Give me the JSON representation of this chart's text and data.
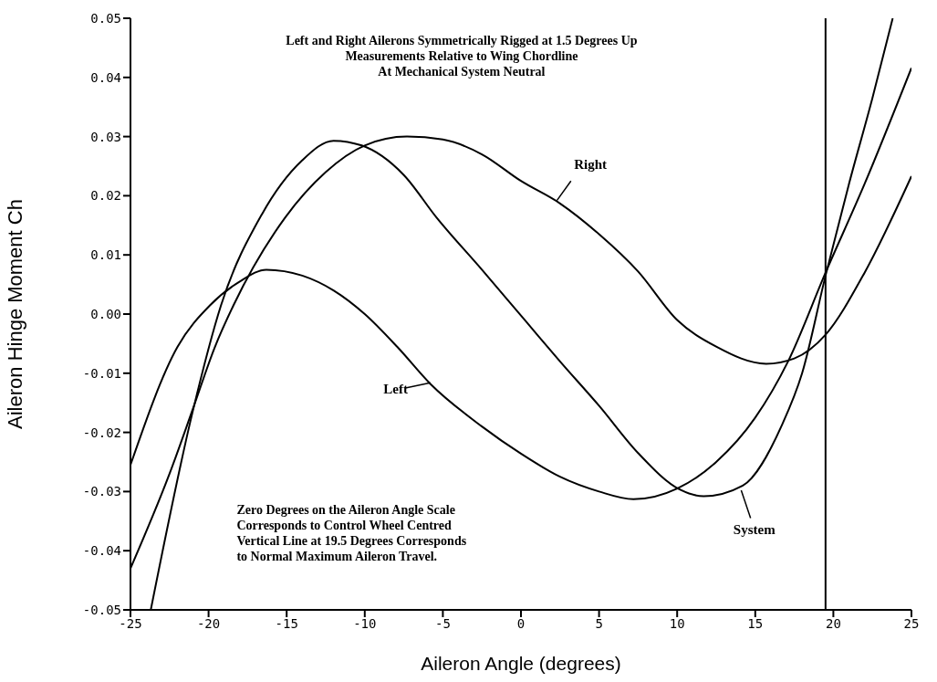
{
  "chart_data": {
    "type": "line",
    "xlabel": "Aileron Angle (degrees)",
    "ylabel": "Aileron Hinge Moment Ch",
    "xlim": [
      -25,
      25
    ],
    "xticks": [
      -25,
      -20,
      -15,
      -10,
      -5,
      0,
      5,
      10,
      15,
      20,
      25
    ],
    "ylim": [
      -0.05,
      0.05
    ],
    "yticks": [
      -0.05,
      -0.04,
      -0.03,
      -0.02,
      -0.01,
      {
        "value": 0,
        "label": "0.00"
      },
      0.01,
      0.02,
      0.03,
      0.04,
      0.05
    ],
    "grid": false,
    "marker": "none",
    "line_style": "solid",
    "series": [
      {
        "name": "Right",
        "color": "#000000",
        "x": [
          -25,
          -22.5,
          -21,
          -19.6,
          -18.4,
          -15.1,
          -12.5,
          -10,
          -7.3,
          -5,
          -2.5,
          0,
          2.5,
          5,
          7.5,
          10,
          12.5,
          15.7,
          17.5,
          19.5,
          22,
          25
        ],
        "values": [
          -0.043,
          -0.027,
          -0.016,
          -0.0056,
          0.0015,
          0.0163,
          0.024,
          0.0285,
          0.03,
          0.0295,
          0.027,
          0.0225,
          0.0187,
          0.0135,
          0.0072,
          -0.001,
          -0.0055,
          -0.0084,
          -0.0075,
          -0.0035,
          0.007,
          0.0233
        ]
      },
      {
        "name": "Left",
        "color": "#000000",
        "x": [
          -25,
          -22,
          -19.9,
          -18,
          -16.3,
          -14,
          -12,
          -10,
          -7.9,
          -5.8,
          -2.5,
          0,
          2.5,
          5,
          7.2,
          10,
          12.5,
          15,
          17.1,
          19.5,
          22,
          25
        ],
        "values": [
          -0.0255,
          -0.0056,
          0.0015,
          0.0055,
          0.0075,
          0.0065,
          0.004,
          0,
          -0.0056,
          -0.0118,
          -0.019,
          -0.0236,
          -0.0275,
          -0.03,
          -0.0313,
          -0.0295,
          -0.025,
          -0.0175,
          -0.008,
          0.007,
          0.022,
          0.0416
        ]
      },
      {
        "name": "System",
        "color": "#000000",
        "x": [
          -23.7,
          -21,
          -19.2,
          -16.6,
          -14,
          -12,
          -10.2,
          -7.5,
          -5.4,
          -2.5,
          0.4,
          2.5,
          5,
          7.5,
          10.2,
          11.7,
          14.2,
          16.7,
          18,
          19.5,
          21,
          22.5,
          23.8
        ],
        "values": [
          -0.05,
          -0.0163,
          0.0015,
          0.0168,
          0.026,
          0.0293,
          0.0285,
          0.0235,
          0.0163,
          0.0075,
          -0.0015,
          -0.008,
          -0.0155,
          -0.0235,
          -0.0297,
          -0.0308,
          -0.029,
          -0.0188,
          -0.01,
          0.0065,
          0.022,
          0.0365,
          0.05
        ]
      }
    ],
    "ref_lines": [
      {
        "axis": "x",
        "value": 19.5,
        "color": "#000000"
      }
    ],
    "annotations": [
      "Left and Right Ailerons Symmetrically Rigged at 1.5 Degrees Up\nMeasurements Relative to Wing Chordline\nAt Mechanical System Neutral",
      "Zero Degrees on the Aileron Angle Scale\nCorresponds to Control Wheel Centred\nVertical Line at 19.5 Degrees Corresponds\nto Normal Maximum Aileron Travel."
    ]
  }
}
